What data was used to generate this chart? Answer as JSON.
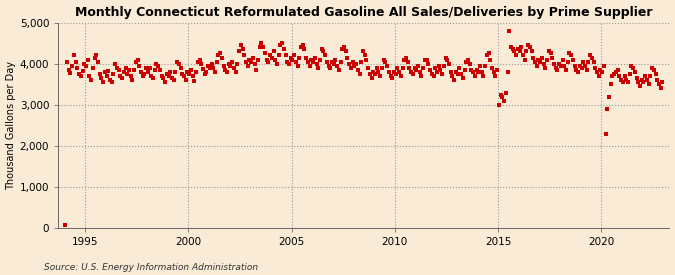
{
  "title": "Monthly Connecticut Reformulated Gasoline All Sales/Deliveries by Prime Supplier",
  "ylabel": "Thousand Gallons per Day",
  "source": "Source: U.S. Energy Information Administration",
  "background_color": "#faebd7",
  "marker_color": "#cc0000",
  "xlim": [
    1993.7,
    2023.3
  ],
  "ylim": [
    0,
    5000
  ],
  "yticks": [
    0,
    1000,
    2000,
    3000,
    4000,
    5000
  ],
  "xticks": [
    1995,
    2000,
    2005,
    2010,
    2015,
    2020
  ],
  "dates": [
    1994.042,
    1994.125,
    1994.208,
    1994.292,
    1994.375,
    1994.458,
    1994.542,
    1994.625,
    1994.708,
    1994.792,
    1994.875,
    1994.958,
    1995.042,
    1995.125,
    1995.208,
    1995.292,
    1995.375,
    1995.458,
    1995.542,
    1995.625,
    1995.708,
    1995.792,
    1995.875,
    1995.958,
    1996.042,
    1996.125,
    1996.208,
    1996.292,
    1996.375,
    1996.458,
    1996.542,
    1996.625,
    1996.708,
    1996.792,
    1996.875,
    1996.958,
    1997.042,
    1997.125,
    1997.208,
    1997.292,
    1997.375,
    1997.458,
    1997.542,
    1997.625,
    1997.708,
    1997.792,
    1997.875,
    1997.958,
    1998.042,
    1998.125,
    1998.208,
    1998.292,
    1998.375,
    1998.458,
    1998.542,
    1998.625,
    1998.708,
    1998.792,
    1998.875,
    1998.958,
    1999.042,
    1999.125,
    1999.208,
    1999.292,
    1999.375,
    1999.458,
    1999.542,
    1999.625,
    1999.708,
    1999.792,
    1999.875,
    1999.958,
    2000.042,
    2000.125,
    2000.208,
    2000.292,
    2000.375,
    2000.458,
    2000.542,
    2000.625,
    2000.708,
    2000.792,
    2000.875,
    2000.958,
    2001.042,
    2001.125,
    2001.208,
    2001.292,
    2001.375,
    2001.458,
    2001.542,
    2001.625,
    2001.708,
    2001.792,
    2001.875,
    2001.958,
    2002.042,
    2002.125,
    2002.208,
    2002.292,
    2002.375,
    2002.458,
    2002.542,
    2002.625,
    2002.708,
    2002.792,
    2002.875,
    2002.958,
    2003.042,
    2003.125,
    2003.208,
    2003.292,
    2003.375,
    2003.458,
    2003.542,
    2003.625,
    2003.708,
    2003.792,
    2003.875,
    2003.958,
    2004.042,
    2004.125,
    2004.208,
    2004.292,
    2004.375,
    2004.458,
    2004.542,
    2004.625,
    2004.708,
    2004.792,
    2004.875,
    2004.958,
    2005.042,
    2005.125,
    2005.208,
    2005.292,
    2005.375,
    2005.458,
    2005.542,
    2005.625,
    2005.708,
    2005.792,
    2005.875,
    2005.958,
    2006.042,
    2006.125,
    2006.208,
    2006.292,
    2006.375,
    2006.458,
    2006.542,
    2006.625,
    2006.708,
    2006.792,
    2006.875,
    2006.958,
    2007.042,
    2007.125,
    2007.208,
    2007.292,
    2007.375,
    2007.458,
    2007.542,
    2007.625,
    2007.708,
    2007.792,
    2007.875,
    2007.958,
    2008.042,
    2008.125,
    2008.208,
    2008.292,
    2008.375,
    2008.458,
    2008.542,
    2008.625,
    2008.708,
    2008.792,
    2008.875,
    2008.958,
    2009.042,
    2009.125,
    2009.208,
    2009.292,
    2009.375,
    2009.458,
    2009.542,
    2009.625,
    2009.708,
    2009.792,
    2009.875,
    2009.958,
    2010.042,
    2010.125,
    2010.208,
    2010.292,
    2010.375,
    2010.458,
    2010.542,
    2010.625,
    2010.708,
    2010.792,
    2010.875,
    2010.958,
    2011.042,
    2011.125,
    2011.208,
    2011.292,
    2011.375,
    2011.458,
    2011.542,
    2011.625,
    2011.708,
    2011.792,
    2011.875,
    2011.958,
    2012.042,
    2012.125,
    2012.208,
    2012.292,
    2012.375,
    2012.458,
    2012.542,
    2012.625,
    2012.708,
    2012.792,
    2012.875,
    2012.958,
    2013.042,
    2013.125,
    2013.208,
    2013.292,
    2013.375,
    2013.458,
    2013.542,
    2013.625,
    2013.708,
    2013.792,
    2013.875,
    2013.958,
    2014.042,
    2014.125,
    2014.208,
    2014.292,
    2014.375,
    2014.458,
    2014.542,
    2014.625,
    2014.708,
    2014.792,
    2014.875,
    2014.958,
    2015.042,
    2015.125,
    2015.208,
    2015.292,
    2015.375,
    2015.458,
    2015.542,
    2015.625,
    2015.708,
    2015.792,
    2015.875,
    2015.958,
    2016.042,
    2016.125,
    2016.208,
    2016.292,
    2016.375,
    2016.458,
    2016.542,
    2016.625,
    2016.708,
    2016.792,
    2016.875,
    2016.958,
    2017.042,
    2017.125,
    2017.208,
    2017.292,
    2017.375,
    2017.458,
    2017.542,
    2017.625,
    2017.708,
    2017.792,
    2017.875,
    2017.958,
    2018.042,
    2018.125,
    2018.208,
    2018.292,
    2018.375,
    2018.458,
    2018.542,
    2018.625,
    2018.708,
    2018.792,
    2018.875,
    2018.958,
    2019.042,
    2019.125,
    2019.208,
    2019.292,
    2019.375,
    2019.458,
    2019.542,
    2019.625,
    2019.708,
    2019.792,
    2019.875,
    2019.958,
    2020.042,
    2020.125,
    2020.208,
    2020.292,
    2020.375,
    2020.458,
    2020.542,
    2020.625,
    2020.708,
    2020.792,
    2020.875,
    2020.958,
    2021.042,
    2021.125,
    2021.208,
    2021.292,
    2021.375,
    2021.458,
    2021.542,
    2021.625,
    2021.708,
    2021.792,
    2021.875,
    2021.958,
    2022.042,
    2022.125,
    2022.208,
    2022.292,
    2022.375,
    2022.458,
    2022.542,
    2022.625,
    2022.708,
    2022.792,
    2022.875,
    2022.958
  ],
  "values": [
    90,
    4050,
    3850,
    3780,
    3950,
    4200,
    4050,
    3900,
    3750,
    3700,
    3820,
    4000,
    3950,
    4100,
    3700,
    3600,
    3900,
    4150,
    4200,
    4050,
    3750,
    3650,
    3550,
    3800,
    3700,
    3820,
    3600,
    3550,
    3750,
    4000,
    3900,
    3850,
    3700,
    3650,
    3800,
    3900,
    3750,
    3850,
    3700,
    3600,
    3850,
    4050,
    4100,
    3950,
    3800,
    3700,
    3750,
    3900,
    3800,
    3900,
    3700,
    3650,
    3850,
    4000,
    3950,
    3850,
    3700,
    3650,
    3550,
    3750,
    3700,
    3800,
    3650,
    3600,
    3800,
    4050,
    4000,
    3900,
    3750,
    3700,
    3600,
    3800,
    3750,
    3850,
    3700,
    3580,
    3800,
    4050,
    4100,
    4000,
    3870,
    3750,
    3800,
    3950,
    3900,
    4000,
    3900,
    3800,
    4050,
    4200,
    4250,
    4150,
    3950,
    3850,
    3800,
    4000,
    3950,
    4050,
    3900,
    3800,
    4000,
    4300,
    4450,
    4350,
    4200,
    4050,
    3950,
    4100,
    4050,
    4150,
    4000,
    3850,
    4100,
    4400,
    4500,
    4400,
    4250,
    4100,
    4050,
    4200,
    4150,
    4300,
    4100,
    4000,
    4200,
    4450,
    4500,
    4350,
    4200,
    4050,
    4000,
    4150,
    4100,
    4200,
    4050,
    3950,
    4150,
    4400,
    4450,
    4350,
    4150,
    4050,
    3950,
    4100,
    4050,
    4150,
    4000,
    3900,
    4100,
    4350,
    4300,
    4200,
    4050,
    3950,
    3900,
    4050,
    4000,
    4100,
    3950,
    3850,
    4050,
    4350,
    4400,
    4300,
    4150,
    4000,
    3900,
    4050,
    3950,
    4000,
    3850,
    3750,
    4050,
    4300,
    4200,
    4100,
    3900,
    3750,
    3650,
    3800,
    3750,
    3900,
    3800,
    3700,
    3900,
    4100,
    4050,
    3950,
    3800,
    3700,
    3650,
    3800,
    3750,
    3900,
    3800,
    3700,
    3900,
    4100,
    4150,
    4050,
    3900,
    3800,
    3750,
    3900,
    3850,
    3950,
    3800,
    3700,
    3900,
    4100,
    4100,
    4000,
    3850,
    3750,
    3700,
    3900,
    3800,
    3950,
    3850,
    3750,
    3950,
    4150,
    4100,
    4000,
    3800,
    3700,
    3600,
    3800,
    3750,
    3900,
    3750,
    3650,
    3850,
    4050,
    4100,
    4000,
    3850,
    3800,
    3700,
    3850,
    3800,
    3950,
    3800,
    3700,
    3950,
    4200,
    4250,
    4100,
    3900,
    3800,
    3700,
    3850,
    3000,
    3250,
    3200,
    3100,
    3300,
    3800,
    4800,
    4400,
    4350,
    4300,
    4200,
    4350,
    4300,
    4400,
    4200,
    4100,
    4300,
    4450,
    4400,
    4300,
    4150,
    4050,
    3950,
    4100,
    4050,
    4150,
    4000,
    3900,
    4100,
    4300,
    4250,
    4150,
    4000,
    3900,
    3850,
    4000,
    3950,
    4100,
    3950,
    3850,
    4050,
    4250,
    4200,
    4100,
    3950,
    3850,
    3800,
    3950,
    3900,
    4050,
    3950,
    3850,
    4050,
    4200,
    4150,
    4050,
    3900,
    3800,
    3700,
    3850,
    3800,
    3950,
    2300,
    2900,
    3200,
    3500,
    3700,
    3750,
    3800,
    3850,
    3700,
    3600,
    3550,
    3700,
    3600,
    3550,
    3750,
    3950,
    3900,
    3800,
    3650,
    3550,
    3450,
    3600,
    3550,
    3700,
    3600,
    3500,
    3700,
    3900,
    3850,
    3750,
    3600,
    3500,
    3400,
    3550
  ]
}
